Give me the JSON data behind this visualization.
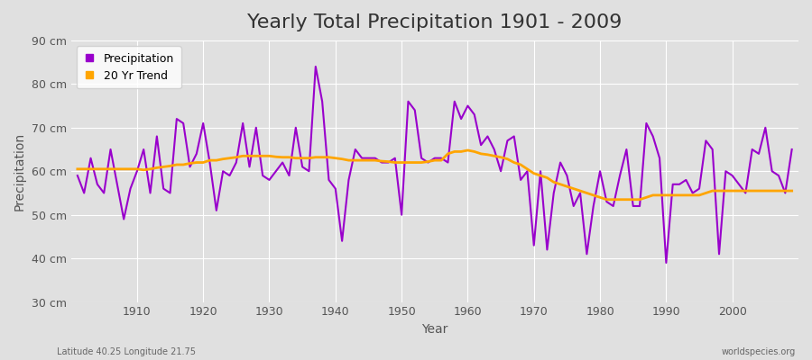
{
  "title": "Yearly Total Precipitation 1901 - 2009",
  "xlabel": "Year",
  "ylabel": "Precipitation",
  "subtitle_left": "Latitude 40.25 Longitude 21.75",
  "subtitle_right": "worldspecies.org",
  "legend_precip": "Precipitation",
  "legend_trend": "20 Yr Trend",
  "ylim": [
    30,
    90
  ],
  "yticks": [
    30,
    40,
    50,
    60,
    70,
    80,
    90
  ],
  "ytick_labels": [
    "30 cm",
    "40 cm",
    "50 cm",
    "60 cm",
    "70 cm",
    "80 cm",
    "90 cm"
  ],
  "bg_color": "#e0e0e0",
  "plot_bg_color": "#e0e0e0",
  "precip_color": "#9900cc",
  "trend_color": "#ffa500",
  "precip_linewidth": 1.5,
  "trend_linewidth": 2.0,
  "years": [
    1901,
    1902,
    1903,
    1904,
    1905,
    1906,
    1907,
    1908,
    1909,
    1910,
    1911,
    1912,
    1913,
    1914,
    1915,
    1916,
    1917,
    1918,
    1919,
    1920,
    1921,
    1922,
    1923,
    1924,
    1925,
    1926,
    1927,
    1928,
    1929,
    1930,
    1931,
    1932,
    1933,
    1934,
    1935,
    1936,
    1937,
    1938,
    1939,
    1940,
    1941,
    1942,
    1943,
    1944,
    1945,
    1946,
    1947,
    1948,
    1949,
    1950,
    1951,
    1952,
    1953,
    1954,
    1955,
    1956,
    1957,
    1958,
    1959,
    1960,
    1961,
    1962,
    1963,
    1964,
    1965,
    1966,
    1967,
    1968,
    1969,
    1970,
    1971,
    1972,
    1973,
    1974,
    1975,
    1976,
    1977,
    1978,
    1979,
    1980,
    1981,
    1982,
    1983,
    1984,
    1985,
    1986,
    1987,
    1988,
    1989,
    1990,
    1991,
    1992,
    1993,
    1994,
    1995,
    1996,
    1997,
    1998,
    1999,
    2000,
    2001,
    2002,
    2003,
    2004,
    2005,
    2006,
    2007,
    2008,
    2009
  ],
  "precip": [
    59,
    55,
    63,
    57,
    55,
    65,
    57,
    49,
    56,
    60,
    65,
    55,
    68,
    56,
    55,
    72,
    71,
    61,
    64,
    71,
    62,
    51,
    60,
    59,
    62,
    71,
    61,
    70,
    59,
    58,
    60,
    62,
    59,
    70,
    61,
    60,
    84,
    76,
    58,
    56,
    44,
    58,
    65,
    63,
    63,
    63,
    62,
    62,
    63,
    50,
    76,
    74,
    63,
    62,
    63,
    63,
    62,
    76,
    72,
    75,
    73,
    66,
    68,
    65,
    60,
    67,
    68,
    58,
    60,
    43,
    60,
    42,
    55,
    62,
    59,
    52,
    55,
    41,
    52,
    60,
    53,
    52,
    59,
    65,
    52,
    52,
    71,
    68,
    63,
    39,
    57,
    57,
    58,
    55,
    56,
    67,
    65,
    41,
    60,
    59,
    57,
    55,
    65,
    64,
    70,
    60,
    59,
    55,
    65
  ],
  "trend": [
    60.5,
    60.5,
    60.5,
    60.5,
    60.5,
    60.5,
    60.5,
    60.5,
    60.5,
    60.5,
    60.3,
    60.5,
    60.8,
    61.0,
    61.2,
    61.5,
    61.5,
    61.8,
    62.0,
    62.0,
    62.5,
    62.5,
    62.8,
    63.0,
    63.2,
    63.5,
    63.5,
    63.5,
    63.5,
    63.5,
    63.3,
    63.2,
    63.2,
    63.0,
    63.0,
    63.0,
    63.2,
    63.2,
    63.2,
    63.0,
    62.8,
    62.5,
    62.5,
    62.5,
    62.5,
    62.5,
    62.3,
    62.2,
    62.0,
    62.0,
    62.0,
    62.0,
    62.0,
    62.2,
    62.5,
    62.5,
    64.0,
    64.5,
    64.5,
    64.8,
    64.5,
    64.0,
    63.8,
    63.5,
    63.2,
    62.8,
    62.0,
    61.5,
    60.5,
    59.5,
    59.0,
    58.5,
    57.5,
    57.0,
    56.5,
    56.0,
    55.5,
    55.0,
    54.5,
    54.0,
    53.5,
    53.5,
    53.5,
    53.5,
    53.5,
    53.5,
    54.0,
    54.5,
    54.5,
    54.5,
    54.5,
    54.5,
    54.5,
    54.5,
    54.5,
    55.0,
    55.5,
    55.5,
    55.5,
    55.5,
    55.5,
    55.5,
    55.5,
    55.5,
    55.5,
    55.5,
    55.5,
    55.5,
    55.5
  ],
  "xtick_positions": [
    1910,
    1920,
    1930,
    1940,
    1950,
    1960,
    1970,
    1980,
    1990,
    2000
  ],
  "title_fontsize": 16,
  "axis_fontsize": 10,
  "tick_fontsize": 9
}
